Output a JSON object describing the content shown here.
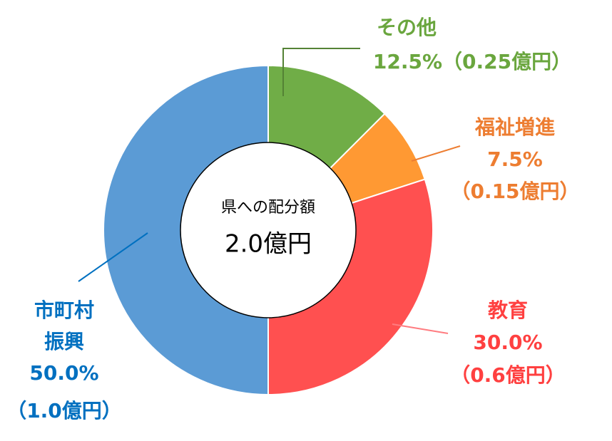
{
  "chart_data": {
    "type": "donut",
    "center_title": "県への配分額",
    "center_value": "2.0億円",
    "categories": [
      "その他",
      "福祉増進",
      "教育",
      "市町村振興"
    ],
    "values": [
      12.5,
      7.5,
      30.0,
      50.0
    ],
    "value_labels": [
      "12.5%",
      "7.5%",
      "30.0%",
      "50.0%"
    ],
    "amounts": [
      0.25,
      0.15,
      0.6,
      1.0
    ],
    "amount_labels": [
      "（0.25億円）",
      "（0.15億円）",
      "（0.6億円）",
      "（1.0億円）"
    ],
    "colors": [
      "#70ad47",
      "#ff9933",
      "#ff5050",
      "#5b9bd5"
    ],
    "label_colors": [
      "#6aa63e",
      "#ed7d31",
      "#ff4040",
      "#0070c0"
    ]
  }
}
